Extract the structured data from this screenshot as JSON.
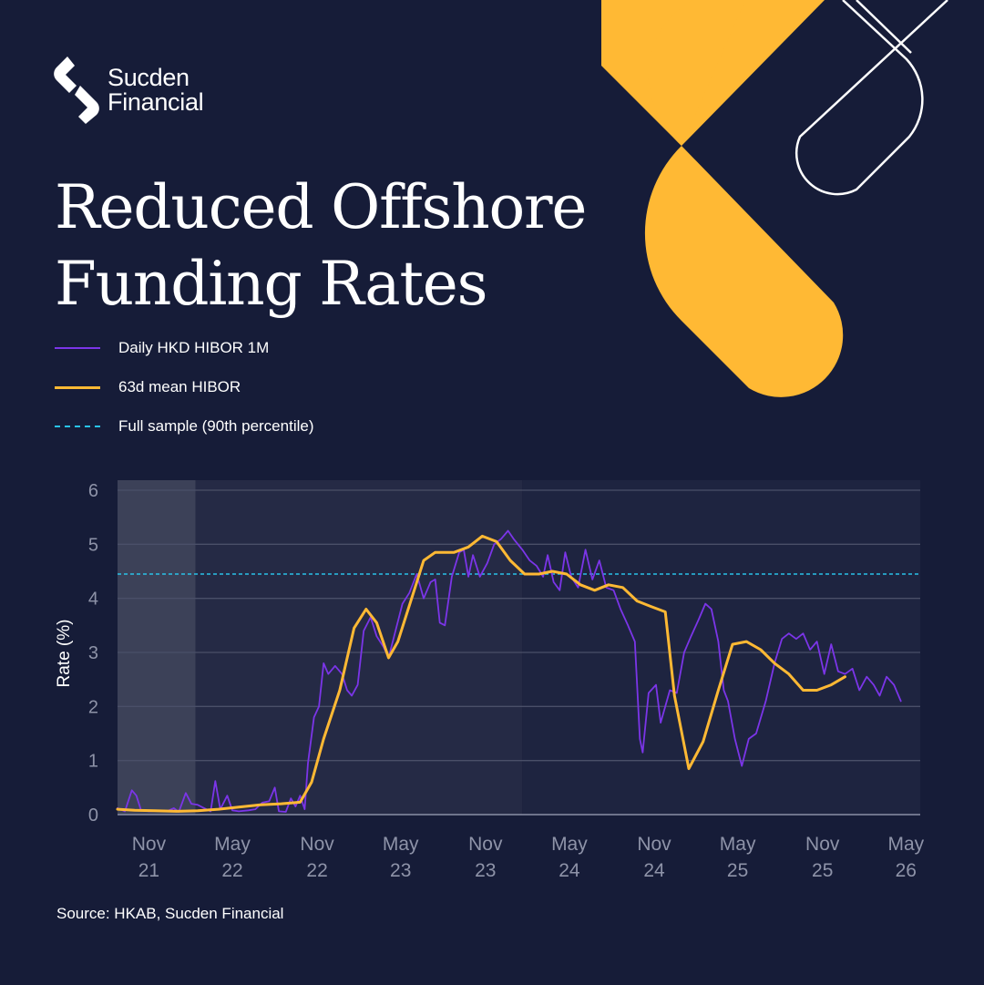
{
  "brand": {
    "name_line1": "Sucden",
    "name_line2": "Financial",
    "accent_color": "#ffb934",
    "background_color": "#161c38"
  },
  "title_line1": "Reduced Offshore",
  "title_line2": "Funding Rates",
  "source": "Source: HKAB, Sucden Financial",
  "chart_data": {
    "type": "line",
    "title": "",
    "ylabel": "Rate (%)",
    "xlabel": "",
    "ylim": [
      0,
      6
    ],
    "xlim": [
      "2021-08-25",
      "2026-06-01"
    ],
    "yticks": [
      "0",
      "1",
      "2",
      "3",
      "4",
      "5",
      "6"
    ],
    "grid": "horizontal",
    "legend_position": "top-left",
    "xticks": [
      {
        "date": "2021-11-01",
        "line1": "Nov",
        "line2": "21"
      },
      {
        "date": "2022-05-01",
        "line1": "May",
        "line2": "22"
      },
      {
        "date": "2022-11-01",
        "line1": "Nov",
        "line2": "22"
      },
      {
        "date": "2023-05-01",
        "line1": "May",
        "line2": "23"
      },
      {
        "date": "2023-11-01",
        "line1": "Nov",
        "line2": "23"
      },
      {
        "date": "2024-05-01",
        "line1": "May",
        "line2": "24"
      },
      {
        "date": "2024-11-01",
        "line1": "Nov",
        "line2": "24"
      },
      {
        "date": "2025-05-01",
        "line1": "May",
        "line2": "25"
      },
      {
        "date": "2025-11-01",
        "line1": "Nov",
        "line2": "25"
      },
      {
        "date": "2026-05-01",
        "line1": "May",
        "line2": "26"
      }
    ],
    "shaded_periods": [
      {
        "start": "2021-08-25",
        "end": "2022-02-10",
        "color": "#3c4158"
      },
      {
        "start": "2022-02-10",
        "end": "2024-01-20",
        "color": "#252a45"
      },
      {
        "start": "2024-01-20",
        "end": "2026-06-01",
        "color": "#1e2440"
      }
    ],
    "reference_line": {
      "name": "Full sample (90th percentile)",
      "value": 4.45,
      "color": "#29c2e8"
    },
    "series": [
      {
        "name": "Daily HKD HIBOR 1M",
        "color": "#7b35e8",
        "points": [
          [
            "2021-08-25",
            0.12
          ],
          [
            "2021-09-10",
            0.06
          ],
          [
            "2021-09-25",
            0.45
          ],
          [
            "2021-10-05",
            0.35
          ],
          [
            "2021-10-15",
            0.08
          ],
          [
            "2021-11-01",
            0.06
          ],
          [
            "2021-11-20",
            0.07
          ],
          [
            "2021-12-10",
            0.06
          ],
          [
            "2021-12-25",
            0.12
          ],
          [
            "2022-01-05",
            0.05
          ],
          [
            "2022-01-20",
            0.4
          ],
          [
            "2022-02-01",
            0.2
          ],
          [
            "2022-02-15",
            0.18
          ],
          [
            "2022-03-01",
            0.12
          ],
          [
            "2022-03-15",
            0.06
          ],
          [
            "2022-03-25",
            0.62
          ],
          [
            "2022-04-05",
            0.1
          ],
          [
            "2022-04-20",
            0.35
          ],
          [
            "2022-05-01",
            0.08
          ],
          [
            "2022-05-15",
            0.06
          ],
          [
            "2022-06-05",
            0.08
          ],
          [
            "2022-06-20",
            0.1
          ],
          [
            "2022-07-05",
            0.22
          ],
          [
            "2022-07-20",
            0.25
          ],
          [
            "2022-08-01",
            0.5
          ],
          [
            "2022-08-10",
            0.06
          ],
          [
            "2022-08-25",
            0.05
          ],
          [
            "2022-09-05",
            0.3
          ],
          [
            "2022-09-15",
            0.15
          ],
          [
            "2022-09-25",
            0.35
          ],
          [
            "2022-10-05",
            0.1
          ],
          [
            "2022-10-12",
            0.95
          ],
          [
            "2022-10-25",
            1.8
          ],
          [
            "2022-11-05",
            2.0
          ],
          [
            "2022-11-15",
            2.8
          ],
          [
            "2022-11-25",
            2.6
          ],
          [
            "2022-12-10",
            2.75
          ],
          [
            "2022-12-25",
            2.6
          ],
          [
            "2023-01-05",
            2.3
          ],
          [
            "2023-01-15",
            2.2
          ],
          [
            "2023-01-28",
            2.4
          ],
          [
            "2023-02-10",
            3.4
          ],
          [
            "2023-02-25",
            3.65
          ],
          [
            "2023-03-10",
            3.3
          ],
          [
            "2023-03-25",
            3.1
          ],
          [
            "2023-04-05",
            2.9
          ],
          [
            "2023-04-20",
            3.4
          ],
          [
            "2023-05-05",
            3.9
          ],
          [
            "2023-05-20",
            4.1
          ],
          [
            "2023-06-05",
            4.45
          ],
          [
            "2023-06-20",
            4.0
          ],
          [
            "2023-07-05",
            4.3
          ],
          [
            "2023-07-15",
            4.35
          ],
          [
            "2023-07-25",
            3.55
          ],
          [
            "2023-08-05",
            3.5
          ],
          [
            "2023-08-20",
            4.4
          ],
          [
            "2023-09-05",
            4.85
          ],
          [
            "2023-09-15",
            4.9
          ],
          [
            "2023-09-25",
            4.4
          ],
          [
            "2023-10-05",
            4.8
          ],
          [
            "2023-10-20",
            4.4
          ],
          [
            "2023-11-05",
            4.65
          ],
          [
            "2023-11-20",
            5.0
          ],
          [
            "2023-12-05",
            5.1
          ],
          [
            "2023-12-20",
            5.25
          ],
          [
            "2024-01-01",
            5.1
          ],
          [
            "2024-01-20",
            4.9
          ],
          [
            "2024-02-05",
            4.7
          ],
          [
            "2024-02-20",
            4.6
          ],
          [
            "2024-03-05",
            4.4
          ],
          [
            "2024-03-15",
            4.8
          ],
          [
            "2024-03-28",
            4.3
          ],
          [
            "2024-04-10",
            4.15
          ],
          [
            "2024-04-22",
            4.85
          ],
          [
            "2024-05-05",
            4.4
          ],
          [
            "2024-05-20",
            4.2
          ],
          [
            "2024-06-05",
            4.9
          ],
          [
            "2024-06-20",
            4.35
          ],
          [
            "2024-07-05",
            4.7
          ],
          [
            "2024-07-20",
            4.2
          ],
          [
            "2024-08-05",
            4.15
          ],
          [
            "2024-08-20",
            3.8
          ],
          [
            "2024-09-05",
            3.5
          ],
          [
            "2024-09-20",
            3.2
          ],
          [
            "2024-10-01",
            1.4
          ],
          [
            "2024-10-07",
            1.15
          ],
          [
            "2024-10-20",
            2.25
          ],
          [
            "2024-11-05",
            2.4
          ],
          [
            "2024-11-15",
            1.7
          ],
          [
            "2024-11-25",
            2.0
          ],
          [
            "2024-12-05",
            2.3
          ],
          [
            "2024-12-20",
            2.25
          ],
          [
            "2025-01-05",
            3.0
          ],
          [
            "2025-01-20",
            3.3
          ],
          [
            "2025-02-05",
            3.6
          ],
          [
            "2025-02-20",
            3.9
          ],
          [
            "2025-03-05",
            3.8
          ],
          [
            "2025-03-20",
            3.2
          ],
          [
            "2025-04-01",
            2.3
          ],
          [
            "2025-04-10",
            2.1
          ],
          [
            "2025-04-25",
            1.4
          ],
          [
            "2025-05-10",
            0.9
          ],
          [
            "2025-05-25",
            1.4
          ],
          [
            "2025-06-10",
            1.5
          ],
          [
            "2025-07-01",
            2.1
          ],
          [
            "2025-07-20",
            2.8
          ],
          [
            "2025-08-05",
            3.25
          ],
          [
            "2025-08-20",
            3.35
          ],
          [
            "2025-09-05",
            3.25
          ],
          [
            "2025-09-20",
            3.35
          ],
          [
            "2025-10-05",
            3.05
          ],
          [
            "2025-10-20",
            3.2
          ],
          [
            "2025-11-05",
            2.6
          ],
          [
            "2025-11-20",
            3.15
          ],
          [
            "2025-12-05",
            2.65
          ],
          [
            "2025-12-20",
            2.6
          ],
          [
            "2026-01-05",
            2.7
          ],
          [
            "2026-01-20",
            2.3
          ],
          [
            "2026-02-05",
            2.55
          ],
          [
            "2026-02-20",
            2.4
          ],
          [
            "2026-03-05",
            2.2
          ],
          [
            "2026-03-20",
            2.55
          ],
          [
            "2026-04-05",
            2.4
          ],
          [
            "2026-04-20",
            2.1
          ]
        ]
      },
      {
        "name": "63d mean HIBOR",
        "color": "#ffb934",
        "points": [
          [
            "2021-08-25",
            0.1
          ],
          [
            "2021-10-01",
            0.08
          ],
          [
            "2021-11-15",
            0.07
          ],
          [
            "2022-01-01",
            0.06
          ],
          [
            "2022-02-15",
            0.07
          ],
          [
            "2022-04-01",
            0.1
          ],
          [
            "2022-05-15",
            0.14
          ],
          [
            "2022-07-01",
            0.18
          ],
          [
            "2022-08-15",
            0.2
          ],
          [
            "2022-09-25",
            0.23
          ],
          [
            "2022-10-20",
            0.6
          ],
          [
            "2022-11-15",
            1.4
          ],
          [
            "2022-12-20",
            2.3
          ],
          [
            "2023-01-20",
            3.45
          ],
          [
            "2023-02-15",
            3.8
          ],
          [
            "2023-03-10",
            3.55
          ],
          [
            "2023-04-05",
            2.9
          ],
          [
            "2023-04-25",
            3.2
          ],
          [
            "2023-05-25",
            4.0
          ],
          [
            "2023-06-20",
            4.7
          ],
          [
            "2023-07-15",
            4.85
          ],
          [
            "2023-08-05",
            4.85
          ],
          [
            "2023-08-25",
            4.85
          ],
          [
            "2023-09-25",
            4.95
          ],
          [
            "2023-10-25",
            5.15
          ],
          [
            "2023-11-25",
            5.05
          ],
          [
            "2023-12-25",
            4.7
          ],
          [
            "2024-01-25",
            4.45
          ],
          [
            "2024-02-25",
            4.45
          ],
          [
            "2024-03-25",
            4.5
          ],
          [
            "2024-04-25",
            4.45
          ],
          [
            "2024-05-25",
            4.25
          ],
          [
            "2024-06-25",
            4.15
          ],
          [
            "2024-07-25",
            4.25
          ],
          [
            "2024-08-25",
            4.2
          ],
          [
            "2024-09-25",
            3.95
          ],
          [
            "2024-10-25",
            3.85
          ],
          [
            "2024-11-25",
            3.75
          ],
          [
            "2024-12-15",
            2.2
          ],
          [
            "2025-01-15",
            0.85
          ],
          [
            "2025-02-15",
            1.35
          ],
          [
            "2025-03-20",
            2.3
          ],
          [
            "2025-04-20",
            3.15
          ],
          [
            "2025-05-20",
            3.2
          ],
          [
            "2025-06-20",
            3.05
          ],
          [
            "2025-07-20",
            2.8
          ],
          [
            "2025-08-20",
            2.6
          ],
          [
            "2025-09-20",
            2.3
          ],
          [
            "2025-10-20",
            2.3
          ],
          [
            "2025-11-20",
            2.4
          ],
          [
            "2025-12-20",
            2.55
          ]
        ]
      }
    ]
  }
}
